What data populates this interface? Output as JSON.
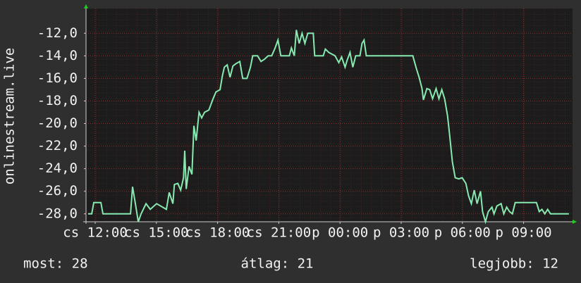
{
  "chart_data": {
    "type": "line",
    "y_label": "onlinestream.live",
    "color": "#86eab0",
    "grid": true,
    "xlim": [
      -0.45,
      23.4
    ],
    "ylim": [
      -28.7,
      -9.8
    ],
    "xticks": [
      {
        "value": 0,
        "label": "cs 12:00"
      },
      {
        "value": 3,
        "label": "cs 15:00"
      },
      {
        "value": 6,
        "label": "cs 18:00"
      },
      {
        "value": 9,
        "label": "cs 21:00"
      },
      {
        "value": 12,
        "label": "p 00:00"
      },
      {
        "value": 15,
        "label": "p 03:00"
      },
      {
        "value": 18,
        "label": "p 06:00"
      },
      {
        "value": 21,
        "label": "p 09:00"
      }
    ],
    "yticks": [
      {
        "value": -12,
        "label": "-12,0"
      },
      {
        "value": -14,
        "label": "-14,0"
      },
      {
        "value": -16,
        "label": "-16,0"
      },
      {
        "value": -18,
        "label": "-18,0"
      },
      {
        "value": -20,
        "label": "-20,0"
      },
      {
        "value": -22,
        "label": "-22,0"
      },
      {
        "value": -24,
        "label": "-24,0"
      },
      {
        "value": -26,
        "label": "-26,0"
      },
      {
        "value": -28,
        "label": "-28,0"
      }
    ],
    "x": [
      -0.35,
      -0.17,
      -0.07,
      0.28,
      0.38,
      1.73,
      1.83,
      1.97,
      2.11,
      2.25,
      2.49,
      2.7,
      3.01,
      3.49,
      3.63,
      3.81,
      3.88,
      4.05,
      4.19,
      4.33,
      4.39,
      4.46,
      4.6,
      4.74,
      4.84,
      4.95,
      5.09,
      5.22,
      5.36,
      5.57,
      5.78,
      5.92,
      6.12,
      6.23,
      6.33,
      6.47,
      6.61,
      6.75,
      6.89,
      7.09,
      7.23,
      7.44,
      7.61,
      7.72,
      7.96,
      8.13,
      8.3,
      8.48,
      8.65,
      8.82,
      8.96,
      9.1,
      9.52,
      9.62,
      9.76,
      9.86,
      10.0,
      10.14,
      10.28,
      10.42,
      10.69,
      10.76,
      11.18,
      11.28,
      11.45,
      11.76,
      11.94,
      12.08,
      12.25,
      12.35,
      12.49,
      12.63,
      12.77,
      12.98,
      13.08,
      13.18,
      13.29,
      15.57,
      15.74,
      15.88,
      16.02,
      16.09,
      16.26,
      16.4,
      16.54,
      16.71,
      16.85,
      16.99,
      17.13,
      17.27,
      17.37,
      17.51,
      17.65,
      17.82,
      17.99,
      18.17,
      18.3,
      18.44,
      18.58,
      18.72,
      18.89,
      18.99,
      19.13,
      19.27,
      19.45,
      19.55,
      19.69,
      19.9,
      20.03,
      20.17,
      20.31,
      20.45,
      20.59,
      21.63,
      21.77,
      21.9,
      22.04,
      22.18,
      22.32,
      23.22
    ],
    "values": [
      -28,
      -28,
      -27,
      -27,
      -28,
      -28,
      -25.6,
      -27.1,
      -28.7,
      -28,
      -27.1,
      -27.6,
      -27.1,
      -27.6,
      -26.1,
      -27.1,
      -25.4,
      -25.3,
      -25.9,
      -24.8,
      -22.4,
      -25.8,
      -23.8,
      -24.5,
      -20.2,
      -21.5,
      -19,
      -19.5,
      -19,
      -18.8,
      -17.8,
      -17.2,
      -17,
      -15.8,
      -15,
      -14.8,
      -15.9,
      -14.9,
      -14.7,
      -14.5,
      -16,
      -16,
      -15,
      -14,
      -14,
      -14.5,
      -14.3,
      -14,
      -14,
      -13.3,
      -12.6,
      -14,
      -14,
      -13.3,
      -14,
      -11.7,
      -12.9,
      -12,
      -12.9,
      -12,
      -12,
      -14,
      -14,
      -13.4,
      -13.7,
      -14,
      -14.6,
      -14.1,
      -15,
      -14.4,
      -13.7,
      -15,
      -14,
      -14,
      -12.9,
      -12.6,
      -14,
      -14,
      -15.1,
      -15.9,
      -16.9,
      -17.9,
      -16.9,
      -17,
      -17.8,
      -16.9,
      -17.8,
      -17,
      -17.8,
      -19.3,
      -20.9,
      -23.4,
      -24.8,
      -24.9,
      -24.8,
      -25.3,
      -26.4,
      -27.1,
      -25.9,
      -27.1,
      -26,
      -27.8,
      -28.7,
      -27.8,
      -27.4,
      -28,
      -27.3,
      -27.1,
      -28,
      -27.4,
      -27.8,
      -28,
      -27,
      -27,
      -27.8,
      -27.6,
      -28,
      -27.6,
      -28,
      -28
    ],
    "stats": [
      "most: 28",
      "átlag: 21",
      "legjobb: 12"
    ]
  }
}
